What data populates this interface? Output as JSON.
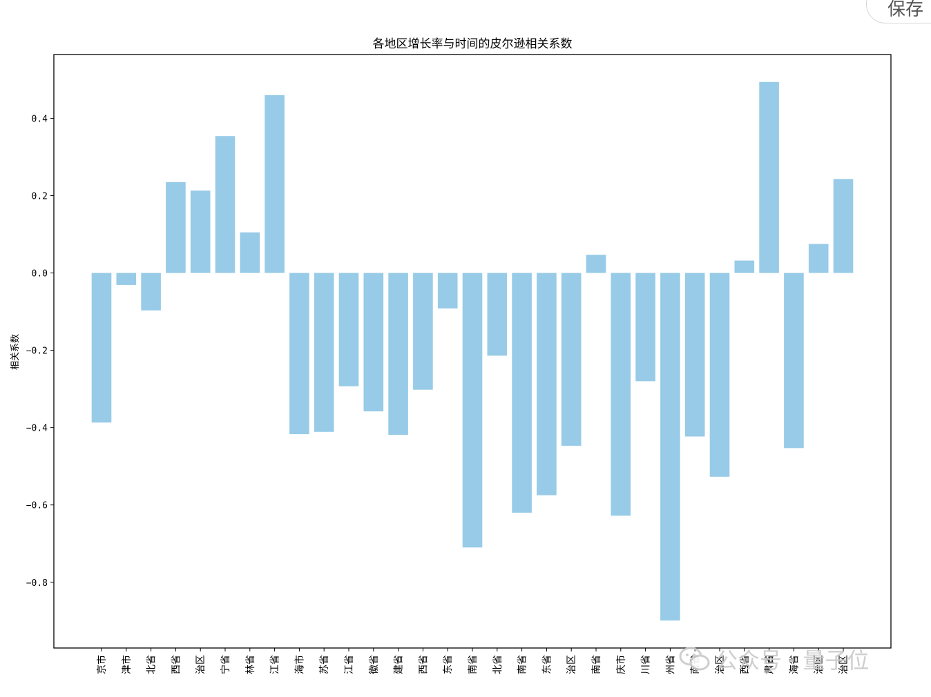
{
  "toolbar": {
    "save_label": "保存"
  },
  "watermark": {
    "text": "公众号 · 量子位",
    "icon": "wechat-icon"
  },
  "chart_data": {
    "type": "bar",
    "title": "各地区增长率与时间的皮尔逊相关系数",
    "xlabel": "",
    "ylabel": "相关系数",
    "ylim": [
      -0.97,
      0.565
    ],
    "yticks": [
      -0.8,
      -0.6,
      -0.4,
      -0.2,
      0.0,
      0.2,
      0.4
    ],
    "ytick_labels": [
      "−0.8",
      "−0.6",
      "−0.4",
      "−0.2",
      "0.0",
      "0.2",
      "0.4"
    ],
    "grid": false,
    "bar_color": "#97cbe7",
    "categories": [
      "京市",
      "津市",
      "北省",
      "西省",
      "治区",
      "宁省",
      "林省",
      "江省",
      "海市",
      "苏省",
      "江省",
      "徽省",
      "建省",
      "西省",
      "东省",
      "南省",
      "北省",
      "南省",
      "东省",
      "治区",
      "南省",
      "庆市",
      "川省",
      "州省",
      "南省",
      "治区",
      "西省",
      "肃省",
      "海省",
      "治区",
      "治区"
    ],
    "values": [
      -0.387,
      -0.031,
      -0.097,
      0.235,
      0.213,
      0.354,
      0.105,
      0.46,
      -0.417,
      -0.411,
      -0.293,
      -0.358,
      -0.419,
      -0.302,
      -0.092,
      -0.71,
      -0.214,
      -0.62,
      -0.575,
      -0.447,
      0.047,
      -0.628,
      -0.28,
      -0.899,
      -0.423,
      -0.527,
      0.032,
      0.494,
      -0.453,
      0.075,
      0.243
    ]
  }
}
